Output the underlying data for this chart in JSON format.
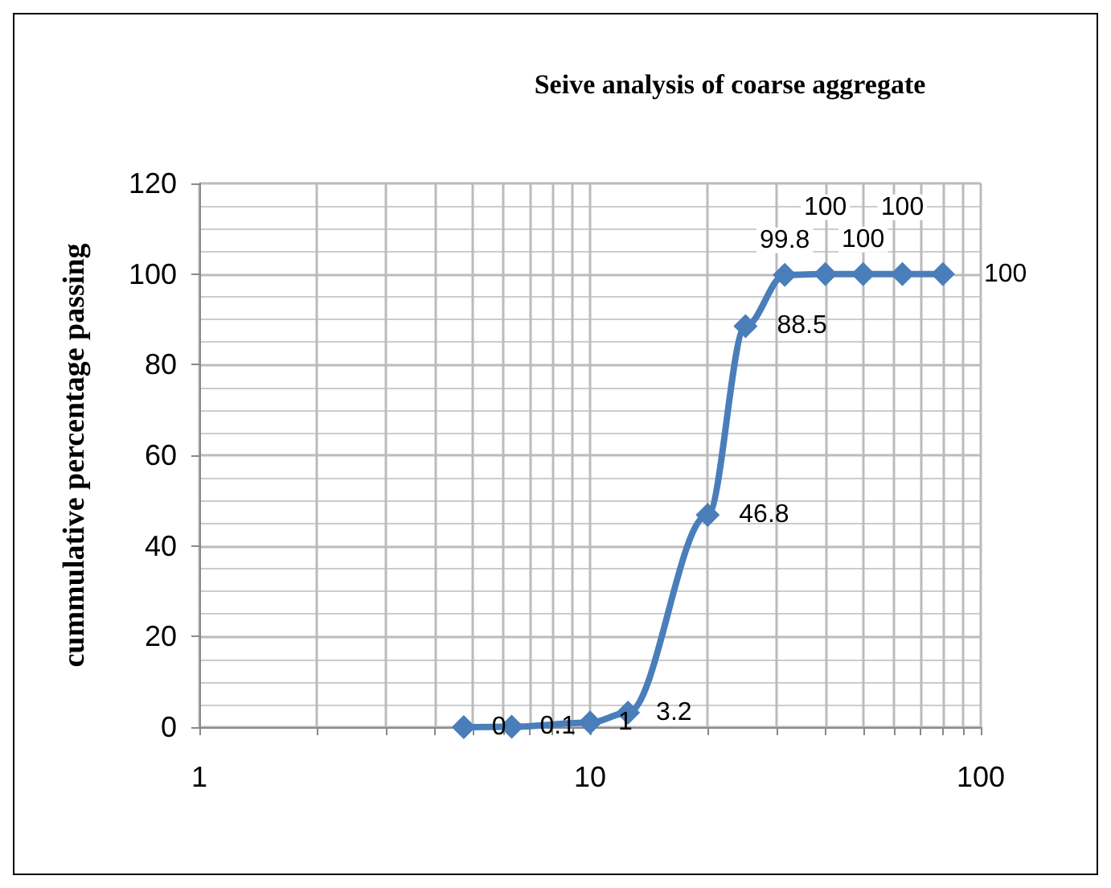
{
  "chart_data": {
    "type": "line",
    "title": "Seive analysis of coarse aggregate",
    "ylabel": "cummulative percentage passing",
    "x": [
      4.75,
      6.3,
      10,
      12.5,
      20,
      25,
      31.5,
      40,
      50,
      63,
      80
    ],
    "series": [
      {
        "color": "#4a7ebb",
        "values": [
          0,
          0.1,
          1,
          3.2,
          46.8,
          88.5,
          99.8,
          100,
          100,
          100,
          100
        ]
      }
    ],
    "log": "x",
    "xlim": [
      1,
      100
    ],
    "xticks": [
      1,
      {
        "value": 2,
        "label": null
      },
      {
        "value": 3,
        "label": null
      },
      {
        "value": 4,
        "label": null
      },
      {
        "value": 5,
        "label": null
      },
      {
        "value": 6,
        "label": null
      },
      {
        "value": 7,
        "label": null
      },
      {
        "value": 8,
        "label": null
      },
      {
        "value": 9,
        "label": null
      },
      10,
      {
        "value": 20,
        "label": null
      },
      {
        "value": 30,
        "label": null
      },
      {
        "value": 40,
        "label": null
      },
      {
        "value": 50,
        "label": null
      },
      {
        "value": 60,
        "label": null
      },
      {
        "value": 70,
        "label": null
      },
      {
        "value": 80,
        "label": null
      },
      {
        "value": 90,
        "label": null
      },
      100
    ],
    "ylim": [
      0,
      120
    ],
    "yticks": [
      0,
      20,
      40,
      60,
      80,
      100,
      120
    ],
    "grid": true,
    "marker": "diamond",
    "data_labels": true
  }
}
